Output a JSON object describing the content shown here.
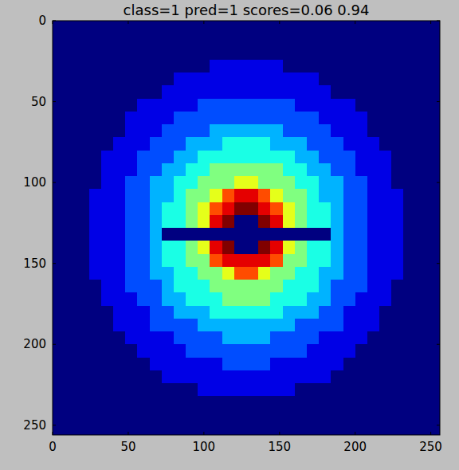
{
  "chart_data": {
    "type": "heatmap",
    "title": "class=1 pred=1 scores=0.06 0.94",
    "xlim": [
      0,
      256
    ],
    "ylim": [
      256,
      0
    ],
    "xticks": [
      0,
      50,
      100,
      150,
      200,
      250
    ],
    "yticks": [
      0,
      50,
      100,
      150,
      200,
      250
    ],
    "value_range": [
      0,
      10
    ],
    "cells": [
      [
        0,
        0,
        0,
        0,
        0,
        0,
        0,
        0,
        0,
        0,
        0,
        0,
        0,
        0,
        0,
        0,
        0,
        0,
        0,
        0,
        0,
        0,
        0,
        0,
        0,
        0,
        0,
        0,
        0,
        0,
        0,
        0
      ],
      [
        0,
        0,
        0,
        0,
        0,
        0,
        0,
        0,
        0,
        0,
        0,
        0,
        0,
        0,
        0,
        0,
        0,
        0,
        0,
        0,
        0,
        0,
        0,
        0,
        0,
        0,
        0,
        0,
        0,
        0,
        0,
        0
      ],
      [
        0,
        0,
        0,
        0,
        0,
        0,
        0,
        0,
        0,
        0,
        0,
        0,
        0,
        0,
        0,
        0,
        0,
        0,
        0,
        0,
        0,
        0,
        0,
        0,
        0,
        0,
        0,
        0,
        0,
        0,
        0,
        0
      ],
      [
        0,
        0,
        0,
        0,
        0,
        0,
        0,
        0,
        0,
        0,
        0,
        0,
        0,
        1,
        1,
        1,
        1,
        1,
        1,
        0,
        0,
        0,
        0,
        0,
        0,
        0,
        0,
        0,
        0,
        0,
        0,
        0
      ],
      [
        0,
        0,
        0,
        0,
        0,
        0,
        0,
        0,
        0,
        0,
        1,
        1,
        1,
        1,
        1,
        1,
        1,
        1,
        1,
        1,
        1,
        1,
        0,
        0,
        0,
        0,
        0,
        0,
        0,
        0,
        0,
        0
      ],
      [
        0,
        0,
        0,
        0,
        0,
        0,
        0,
        0,
        0,
        1,
        1,
        1,
        1,
        1,
        1,
        1,
        1,
        1,
        1,
        1,
        1,
        1,
        1,
        0,
        0,
        0,
        0,
        0,
        0,
        0,
        0,
        0
      ],
      [
        0,
        0,
        0,
        0,
        0,
        0,
        0,
        1,
        1,
        1,
        1,
        1,
        2,
        2,
        2,
        2,
        2,
        2,
        2,
        2,
        1,
        1,
        1,
        1,
        1,
        0,
        0,
        0,
        0,
        0,
        0,
        0
      ],
      [
        0,
        0,
        0,
        0,
        0,
        0,
        1,
        1,
        1,
        1,
        2,
        2,
        2,
        2,
        2,
        2,
        2,
        2,
        2,
        2,
        2,
        2,
        1,
        1,
        1,
        1,
        0,
        0,
        0,
        0,
        0,
        0
      ],
      [
        0,
        0,
        0,
        0,
        0,
        0,
        1,
        1,
        1,
        2,
        2,
        2,
        2,
        3,
        3,
        3,
        3,
        3,
        3,
        2,
        2,
        2,
        2,
        1,
        1,
        1,
        0,
        0,
        0,
        0,
        0,
        0
      ],
      [
        0,
        0,
        0,
        0,
        0,
        1,
        1,
        1,
        2,
        2,
        2,
        3,
        3,
        3,
        4,
        4,
        4,
        4,
        3,
        3,
        3,
        2,
        2,
        2,
        1,
        1,
        1,
        0,
        0,
        0,
        0,
        0
      ],
      [
        0,
        0,
        0,
        0,
        1,
        1,
        1,
        2,
        2,
        2,
        3,
        3,
        4,
        4,
        4,
        4,
        4,
        4,
        4,
        4,
        3,
        3,
        2,
        2,
        2,
        1,
        1,
        1,
        0,
        0,
        0,
        0
      ],
      [
        0,
        0,
        0,
        0,
        1,
        1,
        1,
        2,
        2,
        3,
        3,
        4,
        4,
        5,
        5,
        5,
        5,
        5,
        5,
        4,
        4,
        3,
        3,
        2,
        2,
        1,
        1,
        1,
        0,
        0,
        0,
        0
      ],
      [
        0,
        0,
        0,
        0,
        1,
        1,
        2,
        2,
        3,
        3,
        4,
        4,
        5,
        5,
        5,
        6,
        6,
        5,
        5,
        5,
        4,
        4,
        3,
        3,
        2,
        2,
        1,
        1,
        0,
        0,
        0,
        0
      ],
      [
        0,
        0,
        0,
        1,
        1,
        1,
        2,
        2,
        3,
        3,
        4,
        5,
        5,
        6,
        8,
        9,
        9,
        8,
        6,
        5,
        5,
        4,
        3,
        3,
        2,
        2,
        1,
        1,
        1,
        0,
        0,
        0
      ],
      [
        0,
        0,
        0,
        1,
        1,
        1,
        2,
        2,
        3,
        4,
        4,
        5,
        6,
        8,
        9,
        10,
        10,
        9,
        8,
        6,
        5,
        4,
        4,
        3,
        2,
        2,
        1,
        1,
        1,
        0,
        0,
        0
      ],
      [
        0,
        0,
        0,
        1,
        1,
        1,
        2,
        2,
        3,
        4,
        4,
        5,
        6,
        9,
        10,
        0,
        0,
        10,
        9,
        6,
        5,
        4,
        4,
        3,
        2,
        2,
        1,
        1,
        1,
        0,
        0,
        0
      ],
      [
        0,
        0,
        0,
        1,
        1,
        1,
        2,
        2,
        3,
        0,
        0,
        0,
        0,
        0,
        0,
        0,
        0,
        0,
        0,
        0,
        0,
        0,
        0,
        3,
        2,
        2,
        1,
        1,
        1,
        0,
        0,
        0
      ],
      [
        0,
        0,
        0,
        1,
        1,
        1,
        2,
        2,
        3,
        4,
        4,
        5,
        6,
        9,
        10,
        0,
        0,
        10,
        9,
        6,
        5,
        4,
        4,
        3,
        2,
        2,
        1,
        1,
        1,
        0,
        0,
        0
      ],
      [
        0,
        0,
        0,
        1,
        1,
        1,
        2,
        2,
        3,
        4,
        4,
        5,
        5,
        8,
        9,
        9,
        9,
        9,
        8,
        5,
        5,
        4,
        4,
        3,
        2,
        2,
        1,
        1,
        1,
        0,
        0,
        0
      ],
      [
        0,
        0,
        0,
        1,
        1,
        1,
        2,
        2,
        3,
        3,
        4,
        4,
        5,
        5,
        6,
        8,
        8,
        6,
        5,
        5,
        4,
        4,
        3,
        3,
        2,
        2,
        1,
        1,
        1,
        0,
        0,
        0
      ],
      [
        0,
        0,
        0,
        0,
        1,
        1,
        2,
        2,
        2,
        3,
        4,
        4,
        4,
        5,
        5,
        5,
        5,
        5,
        5,
        4,
        4,
        4,
        3,
        2,
        2,
        2,
        1,
        1,
        0,
        0,
        0,
        0
      ],
      [
        0,
        0,
        0,
        0,
        1,
        1,
        1,
        2,
        2,
        3,
        3,
        4,
        4,
        4,
        5,
        5,
        5,
        5,
        4,
        4,
        4,
        3,
        3,
        2,
        2,
        1,
        1,
        1,
        0,
        0,
        0,
        0
      ],
      [
        0,
        0,
        0,
        0,
        0,
        1,
        1,
        1,
        2,
        2,
        3,
        3,
        3,
        4,
        4,
        4,
        4,
        4,
        4,
        3,
        3,
        3,
        2,
        2,
        1,
        1,
        1,
        0,
        0,
        0,
        0,
        0
      ],
      [
        0,
        0,
        0,
        0,
        0,
        1,
        1,
        1,
        2,
        2,
        2,
        2,
        3,
        3,
        3,
        3,
        3,
        3,
        3,
        3,
        2,
        2,
        2,
        2,
        1,
        1,
        1,
        0,
        0,
        0,
        0,
        0
      ],
      [
        0,
        0,
        0,
        0,
        0,
        0,
        1,
        1,
        1,
        1,
        2,
        2,
        2,
        2,
        3,
        3,
        3,
        3,
        2,
        2,
        2,
        2,
        1,
        1,
        1,
        1,
        0,
        0,
        0,
        0,
        0,
        0
      ],
      [
        0,
        0,
        0,
        0,
        0,
        0,
        0,
        1,
        1,
        1,
        1,
        2,
        2,
        2,
        2,
        2,
        2,
        2,
        2,
        2,
        2,
        1,
        1,
        1,
        1,
        0,
        0,
        0,
        0,
        0,
        0,
        0
      ],
      [
        0,
        0,
        0,
        0,
        0,
        0,
        0,
        0,
        1,
        1,
        1,
        1,
        1,
        1,
        2,
        2,
        2,
        2,
        1,
        1,
        1,
        1,
        1,
        1,
        0,
        0,
        0,
        0,
        0,
        0,
        0,
        0
      ],
      [
        0,
        0,
        0,
        0,
        0,
        0,
        0,
        0,
        0,
        1,
        1,
        1,
        1,
        1,
        1,
        1,
        1,
        1,
        1,
        1,
        1,
        1,
        1,
        0,
        0,
        0,
        0,
        0,
        0,
        0,
        0,
        0
      ],
      [
        0,
        0,
        0,
        0,
        0,
        0,
        0,
        0,
        0,
        0,
        0,
        0,
        1,
        1,
        1,
        1,
        1,
        1,
        1,
        1,
        0,
        0,
        0,
        0,
        0,
        0,
        0,
        0,
        0,
        0,
        0,
        0
      ],
      [
        0,
        0,
        0,
        0,
        0,
        0,
        0,
        0,
        0,
        0,
        0,
        0,
        0,
        0,
        0,
        0,
        0,
        0,
        0,
        0,
        0,
        0,
        0,
        0,
        0,
        0,
        0,
        0,
        0,
        0,
        0,
        0
      ],
      [
        0,
        0,
        0,
        0,
        0,
        0,
        0,
        0,
        0,
        0,
        0,
        0,
        0,
        0,
        0,
        0,
        0,
        0,
        0,
        0,
        0,
        0,
        0,
        0,
        0,
        0,
        0,
        0,
        0,
        0,
        0,
        0
      ],
      [
        0,
        0,
        0,
        0,
        0,
        0,
        0,
        0,
        0,
        0,
        0,
        0,
        0,
        0,
        0,
        0,
        0,
        0,
        0,
        0,
        0,
        0,
        0,
        0,
        0,
        0,
        0,
        0,
        0,
        0,
        0,
        0
      ]
    ]
  }
}
